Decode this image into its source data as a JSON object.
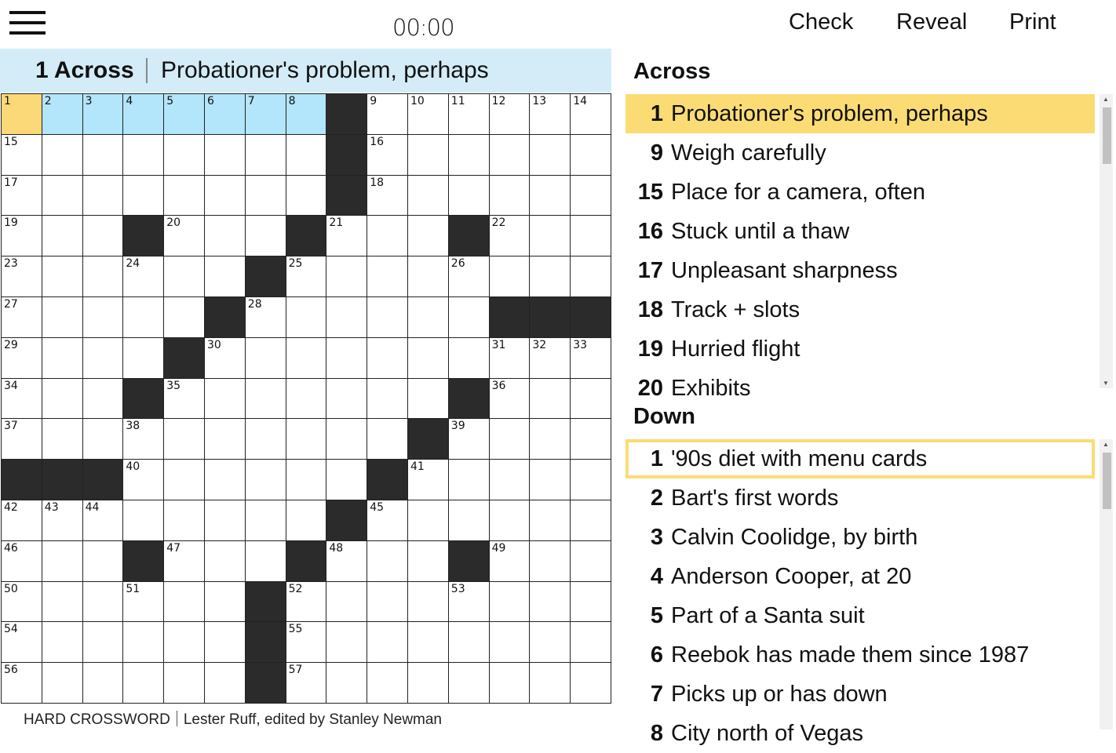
{
  "header": {
    "menu_icon": "hamburger-icon",
    "timer": "00:00",
    "check": "Check",
    "reveal": "Reveal",
    "print": "Print"
  },
  "current_clue": {
    "label": "1 Across",
    "text": "Probationer's problem, perhaps"
  },
  "colors": {
    "current_cell": "#fbd878",
    "current_word": "#b3e5fb",
    "clue_bar": "#d3ecf7",
    "selected_clue": "#fbdc74",
    "black": "#2b2b2b"
  },
  "grid": [
    [
      1,
      2,
      3,
      4,
      5,
      6,
      7,
      8,
      "#",
      9,
      10,
      11,
      12,
      13,
      14
    ],
    [
      15,
      "",
      "",
      "",
      "",
      "",
      "",
      "",
      "#",
      16,
      "",
      "",
      "",
      "",
      ""
    ],
    [
      17,
      "",
      "",
      "",
      "",
      "",
      "",
      "",
      "#",
      18,
      "",
      "",
      "",
      "",
      ""
    ],
    [
      19,
      "",
      "",
      "#",
      20,
      "",
      "",
      "#",
      21,
      "",
      "",
      "#",
      22,
      "",
      ""
    ],
    [
      23,
      "",
      "",
      24,
      "",
      "",
      "#",
      25,
      "",
      "",
      "",
      26,
      "",
      "",
      ""
    ],
    [
      27,
      "",
      "",
      "",
      "",
      "#",
      28,
      "",
      "",
      "",
      "",
      "",
      "#",
      "#",
      "#"
    ],
    [
      29,
      "",
      "",
      "",
      "#",
      30,
      "",
      "",
      "",
      "",
      "",
      "",
      31,
      32,
      33
    ],
    [
      34,
      "",
      "",
      "#",
      35,
      "",
      "",
      "",
      "",
      "",
      "",
      "#",
      36,
      "",
      ""
    ],
    [
      37,
      "",
      "",
      38,
      "",
      "",
      "",
      "",
      "",
      "",
      "#",
      39,
      "",
      "",
      ""
    ],
    [
      "#",
      "#",
      "#",
      40,
      "",
      "",
      "",
      "",
      "",
      "#",
      41,
      "",
      "",
      "",
      ""
    ],
    [
      42,
      43,
      44,
      "",
      "",
      "",
      "",
      "",
      "#",
      45,
      "",
      "",
      "",
      "",
      ""
    ],
    [
      46,
      "",
      "",
      "#",
      47,
      "",
      "",
      "#",
      48,
      "",
      "",
      "#",
      49,
      "",
      ""
    ],
    [
      50,
      "",
      "",
      51,
      "",
      "",
      "#",
      52,
      "",
      "",
      "",
      53,
      "",
      "",
      ""
    ],
    [
      54,
      "",
      "",
      "",
      "",
      "",
      "#",
      55,
      "",
      "",
      "",
      "",
      "",
      "",
      ""
    ],
    [
      56,
      "",
      "",
      "",
      "",
      "",
      "#",
      57,
      "",
      "",
      "",
      "",
      "",
      "",
      ""
    ]
  ],
  "byline": {
    "title": "HARD CROSSWORD",
    "author": "Lester Ruff, edited by Stanley Newman"
  },
  "across": {
    "heading": "Across",
    "clues": [
      {
        "num": "1",
        "text": "Probationer's problem, perhaps"
      },
      {
        "num": "9",
        "text": "Weigh carefully"
      },
      {
        "num": "15",
        "text": "Place for a camera, often"
      },
      {
        "num": "16",
        "text": "Stuck until a thaw"
      },
      {
        "num": "17",
        "text": "Unpleasant sharpness"
      },
      {
        "num": "18",
        "text": "Track + slots"
      },
      {
        "num": "19",
        "text": "Hurried flight"
      },
      {
        "num": "20",
        "text": "Exhibits"
      }
    ]
  },
  "down": {
    "heading": "Down",
    "clues": [
      {
        "num": "1",
        "text": "'90s diet with menu cards"
      },
      {
        "num": "2",
        "text": "Bart's first words"
      },
      {
        "num": "3",
        "text": "Calvin Coolidge, by birth"
      },
      {
        "num": "4",
        "text": "Anderson Cooper, at 20"
      },
      {
        "num": "5",
        "text": "Part of a Santa suit"
      },
      {
        "num": "6",
        "text": "Reebok has made them since 1987"
      },
      {
        "num": "7",
        "text": "Picks up or has down"
      },
      {
        "num": "8",
        "text": "City north of Vegas"
      }
    ]
  }
}
